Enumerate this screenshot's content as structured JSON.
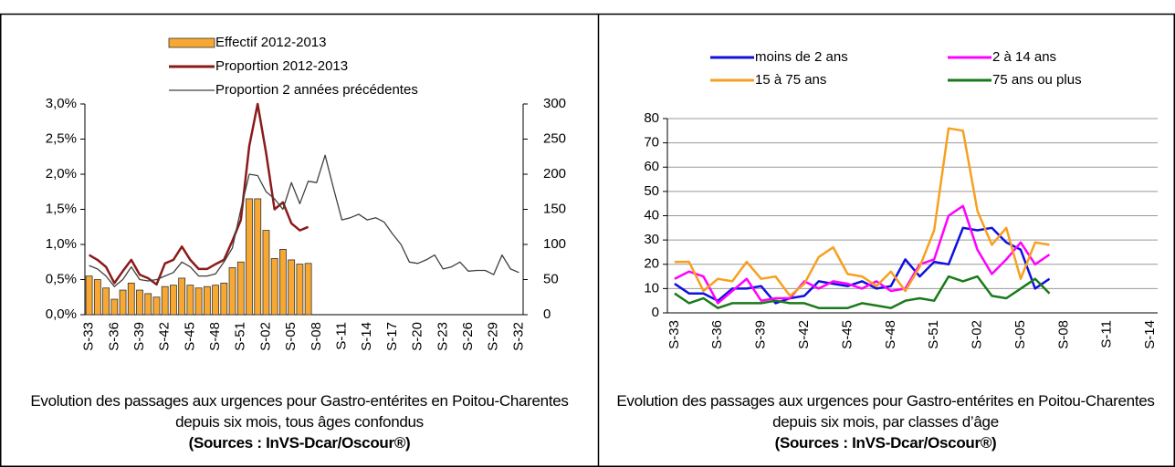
{
  "chart_data": [
    {
      "type": "combo",
      "caption": "Evolution des passages aux urgences pour Gastro-entérites en Poitou-Charentes depuis six mois, tous âges confondus",
      "source": "(Sources : InVS-Dcar/Oscour®)",
      "categories": [
        "S-33",
        null,
        null,
        "S-36",
        null,
        null,
        "S-39",
        null,
        null,
        "S-42",
        null,
        null,
        "S-45",
        null,
        null,
        "S-48",
        null,
        null,
        "S-51",
        null,
        null,
        "S-02",
        null,
        null,
        "S-05",
        null,
        null,
        "S-08",
        null,
        null,
        "S-11",
        null,
        null,
        "S-14",
        null,
        null,
        "S-17",
        null,
        null,
        "S-20",
        null,
        null,
        "S-23",
        null,
        null,
        "S-26",
        null,
        null,
        "S-29",
        null,
        null,
        "S-32"
      ],
      "ylim": [
        0,
        3
      ],
      "yticks": [
        {
          "value": 0,
          "label": "0,0%"
        },
        {
          "value": 0.5,
          "label": "0,5%"
        },
        {
          "value": 1,
          "label": "1,0%"
        },
        {
          "value": 1.5,
          "label": "1,5%"
        },
        {
          "value": 2,
          "label": "2,0%"
        },
        {
          "value": 2.5,
          "label": "2,5%"
        },
        {
          "value": 3,
          "label": "3,0%"
        }
      ],
      "y2lim": [
        0,
        300
      ],
      "y2ticks": [
        0,
        50,
        100,
        150,
        200,
        250,
        300
      ],
      "grid": false,
      "series": [
        {
          "name": "Effectif 2012-2013",
          "type": "bar",
          "axis": "y2",
          "color": "#f7a833",
          "values": [
            55,
            50,
            38,
            22,
            35,
            45,
            35,
            30,
            25,
            40,
            42,
            52,
            42,
            38,
            40,
            42,
            45,
            67,
            75,
            165,
            165,
            120,
            80,
            93,
            78,
            72,
            73,
            null,
            null,
            null,
            null,
            null,
            null,
            null,
            null,
            null,
            null,
            null,
            null,
            null,
            null,
            null,
            null,
            null,
            null,
            null,
            null,
            null,
            null,
            null,
            null,
            null
          ]
        },
        {
          "name": "Proportion 2012-2013",
          "type": "line",
          "color": "#8b1a1a",
          "values": [
            0.85,
            0.78,
            0.68,
            0.45,
            0.62,
            0.78,
            0.57,
            0.52,
            0.43,
            0.73,
            0.78,
            0.97,
            0.78,
            0.65,
            0.65,
            0.72,
            0.78,
            1.05,
            1.35,
            2.4,
            3.0,
            2.3,
            1.5,
            1.6,
            1.3,
            1.2,
            1.25,
            null,
            null,
            null,
            null,
            null,
            null,
            null,
            null,
            null,
            null,
            null,
            null,
            null,
            null,
            null,
            null,
            null,
            null,
            null,
            null,
            null,
            null,
            null,
            null,
            null
          ]
        },
        {
          "name": "Proportion 2 années précédentes",
          "type": "line",
          "color": "#404040",
          "values": [
            0.7,
            0.65,
            0.55,
            0.4,
            0.5,
            0.68,
            0.5,
            0.48,
            0.5,
            0.55,
            0.6,
            0.75,
            0.68,
            0.55,
            0.55,
            0.58,
            0.75,
            0.95,
            1.5,
            2.0,
            1.98,
            1.75,
            1.65,
            1.5,
            1.88,
            1.58,
            1.9,
            1.88,
            2.27,
            1.8,
            1.35,
            1.38,
            1.43,
            1.35,
            1.38,
            1.32,
            1.15,
            1.0,
            0.75,
            0.73,
            0.78,
            0.85,
            0.65,
            0.68,
            0.75,
            0.62,
            0.63,
            0.63,
            0.57,
            0.85,
            0.65,
            0.6
          ]
        }
      ]
    },
    {
      "type": "line",
      "caption": "Evolution des passages aux urgences pour Gastro-entérites en Poitou-Charentes depuis six mois, par classes d’âge",
      "source": "(Sources : InVS-Dcar/Oscour®)",
      "categories": [
        "S-33",
        null,
        null,
        "S-36",
        null,
        null,
        "S-39",
        null,
        null,
        "S-42",
        null,
        null,
        "S-45",
        null,
        null,
        "S-48",
        null,
        null,
        "S-51",
        null,
        null,
        "S-02",
        null,
        null,
        "S-05",
        null,
        null,
        "S-08",
        null,
        null,
        "S-11",
        null,
        null,
        "S-14"
      ],
      "ylim": [
        0,
        80
      ],
      "yticks": [
        0,
        10,
        20,
        30,
        40,
        50,
        60,
        70,
        80
      ],
      "grid": true,
      "series": [
        {
          "name": "moins de 2 ans",
          "color": "#1010e0",
          "values": [
            12,
            8,
            8,
            5,
            10,
            10,
            11,
            4,
            6,
            7,
            13,
            12,
            11,
            13,
            10,
            11,
            22,
            15,
            21,
            20,
            35,
            34,
            35,
            29,
            26,
            10,
            14,
            null,
            null,
            null,
            null,
            null,
            null,
            null
          ]
        },
        {
          "name": "2 à 14 ans",
          "color": "#ff00ff",
          "values": [
            14,
            17,
            15,
            4,
            9,
            14,
            5,
            6,
            6,
            13,
            10,
            13,
            12,
            10,
            13,
            9,
            10,
            20,
            22,
            40,
            44,
            26,
            16,
            22,
            29,
            20,
            24,
            null,
            null,
            null,
            null,
            null,
            null,
            null
          ]
        },
        {
          "name": "15 à 75 ans",
          "color": "#f7a020",
          "values": [
            21,
            21,
            9,
            14,
            13,
            21,
            14,
            15,
            7,
            12,
            23,
            27,
            16,
            15,
            11,
            17,
            9,
            19,
            34,
            76,
            75,
            42,
            28,
            35,
            14,
            29,
            28,
            null,
            null,
            null,
            null,
            null,
            null,
            null
          ]
        },
        {
          "name": "75 ans ou plus",
          "color": "#1a7a1a",
          "values": [
            8,
            4,
            6,
            2,
            4,
            4,
            4,
            5,
            4,
            4,
            2,
            2,
            2,
            4,
            3,
            2,
            5,
            6,
            5,
            15,
            13,
            15,
            7,
            6,
            10,
            14,
            8,
            null,
            null,
            null,
            null,
            null,
            null,
            null
          ]
        }
      ]
    }
  ]
}
